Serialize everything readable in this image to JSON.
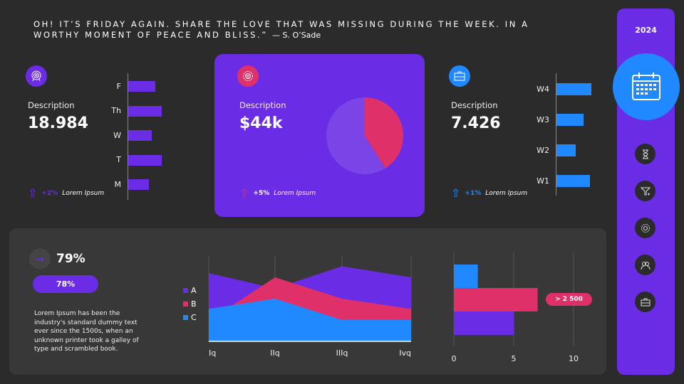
{
  "quote": {
    "text": "OH! IT’S FRIDAY AGAIN. SHARE THE LOVE THAT WAS MISSING DURING THE WEEK. IN A WORTHY MOMENT OF PEACE AND BLISS.”",
    "author": "— S. O’Sade"
  },
  "colors": {
    "purple": "#6a2ce4",
    "pink": "#e0306a",
    "blue": "#2189ff",
    "bg": "#2b2b2b",
    "panel": "#383838"
  },
  "kpi1": {
    "icon": "target-icon",
    "label": "Description",
    "value": "18.984",
    "trend": "+2%",
    "trend_text": "Lorem Ipsum"
  },
  "kpi2": {
    "icon": "gear-icon",
    "label": "Description",
    "value": "$44k",
    "trend": "+5%",
    "trend_text": "Lorem Ipsum"
  },
  "kpi3": {
    "icon": "briefcase-icon",
    "label": "Description",
    "value": "7.426",
    "trend": "+1%",
    "trend_text": "Lorem Ipsum"
  },
  "sidebar": {
    "year": "2024",
    "icons": [
      "calendar-icon",
      "hourglass-icon",
      "funnel-icon",
      "gear-icon",
      "team-icon",
      "briefcase-icon"
    ]
  },
  "progress": {
    "value": "79%",
    "pill": "78%",
    "text": "Lorem Ipsum has been the industry's standard dummy text ever since the 1500s, when an unknown printer took a galley of type and scrambled book."
  },
  "chart_data": [
    {
      "type": "bar",
      "orientation": "horizontal",
      "categories": [
        "F",
        "Th",
        "W",
        "T",
        "M"
      ],
      "values": [
        3.8,
        4.7,
        3.3,
        4.7,
        2.9
      ],
      "color": "#6a2ce4"
    },
    {
      "type": "pie",
      "values": [
        41,
        59
      ],
      "colors": [
        "#e0306a",
        "#7a45e6"
      ]
    },
    {
      "type": "bar",
      "orientation": "horizontal",
      "categories": [
        "W4",
        "W3",
        "W2",
        "W1"
      ],
      "values": [
        4.9,
        3.8,
        2.7,
        4.7
      ],
      "color": "#2189ff"
    },
    {
      "type": "area",
      "categories": [
        "Iq",
        "IIq",
        "IIIq",
        "Ivq"
      ],
      "ylim": [
        0,
        5
      ],
      "series": [
        {
          "name": "A",
          "values": [
            4.0,
            3.1,
            4.4,
            3.75
          ],
          "color": "#6a2ce4"
        },
        {
          "name": "B",
          "values": [
            1.2,
            3.75,
            2.5,
            1.9
          ],
          "color": "#e0306a"
        },
        {
          "name": "C",
          "values": [
            1.9,
            2.5,
            1.25,
            1.25
          ],
          "color": "#2189ff"
        }
      ]
    },
    {
      "type": "bar",
      "orientation": "horizontal",
      "values": [
        2,
        7,
        5
      ],
      "colors": [
        "#2189ff",
        "#e0306a",
        "#6a2ce4"
      ],
      "xlim": [
        0,
        10
      ],
      "xticks": [
        "0",
        "5",
        "10"
      ],
      "annotation": "> 2 500",
      "grid": true
    }
  ]
}
